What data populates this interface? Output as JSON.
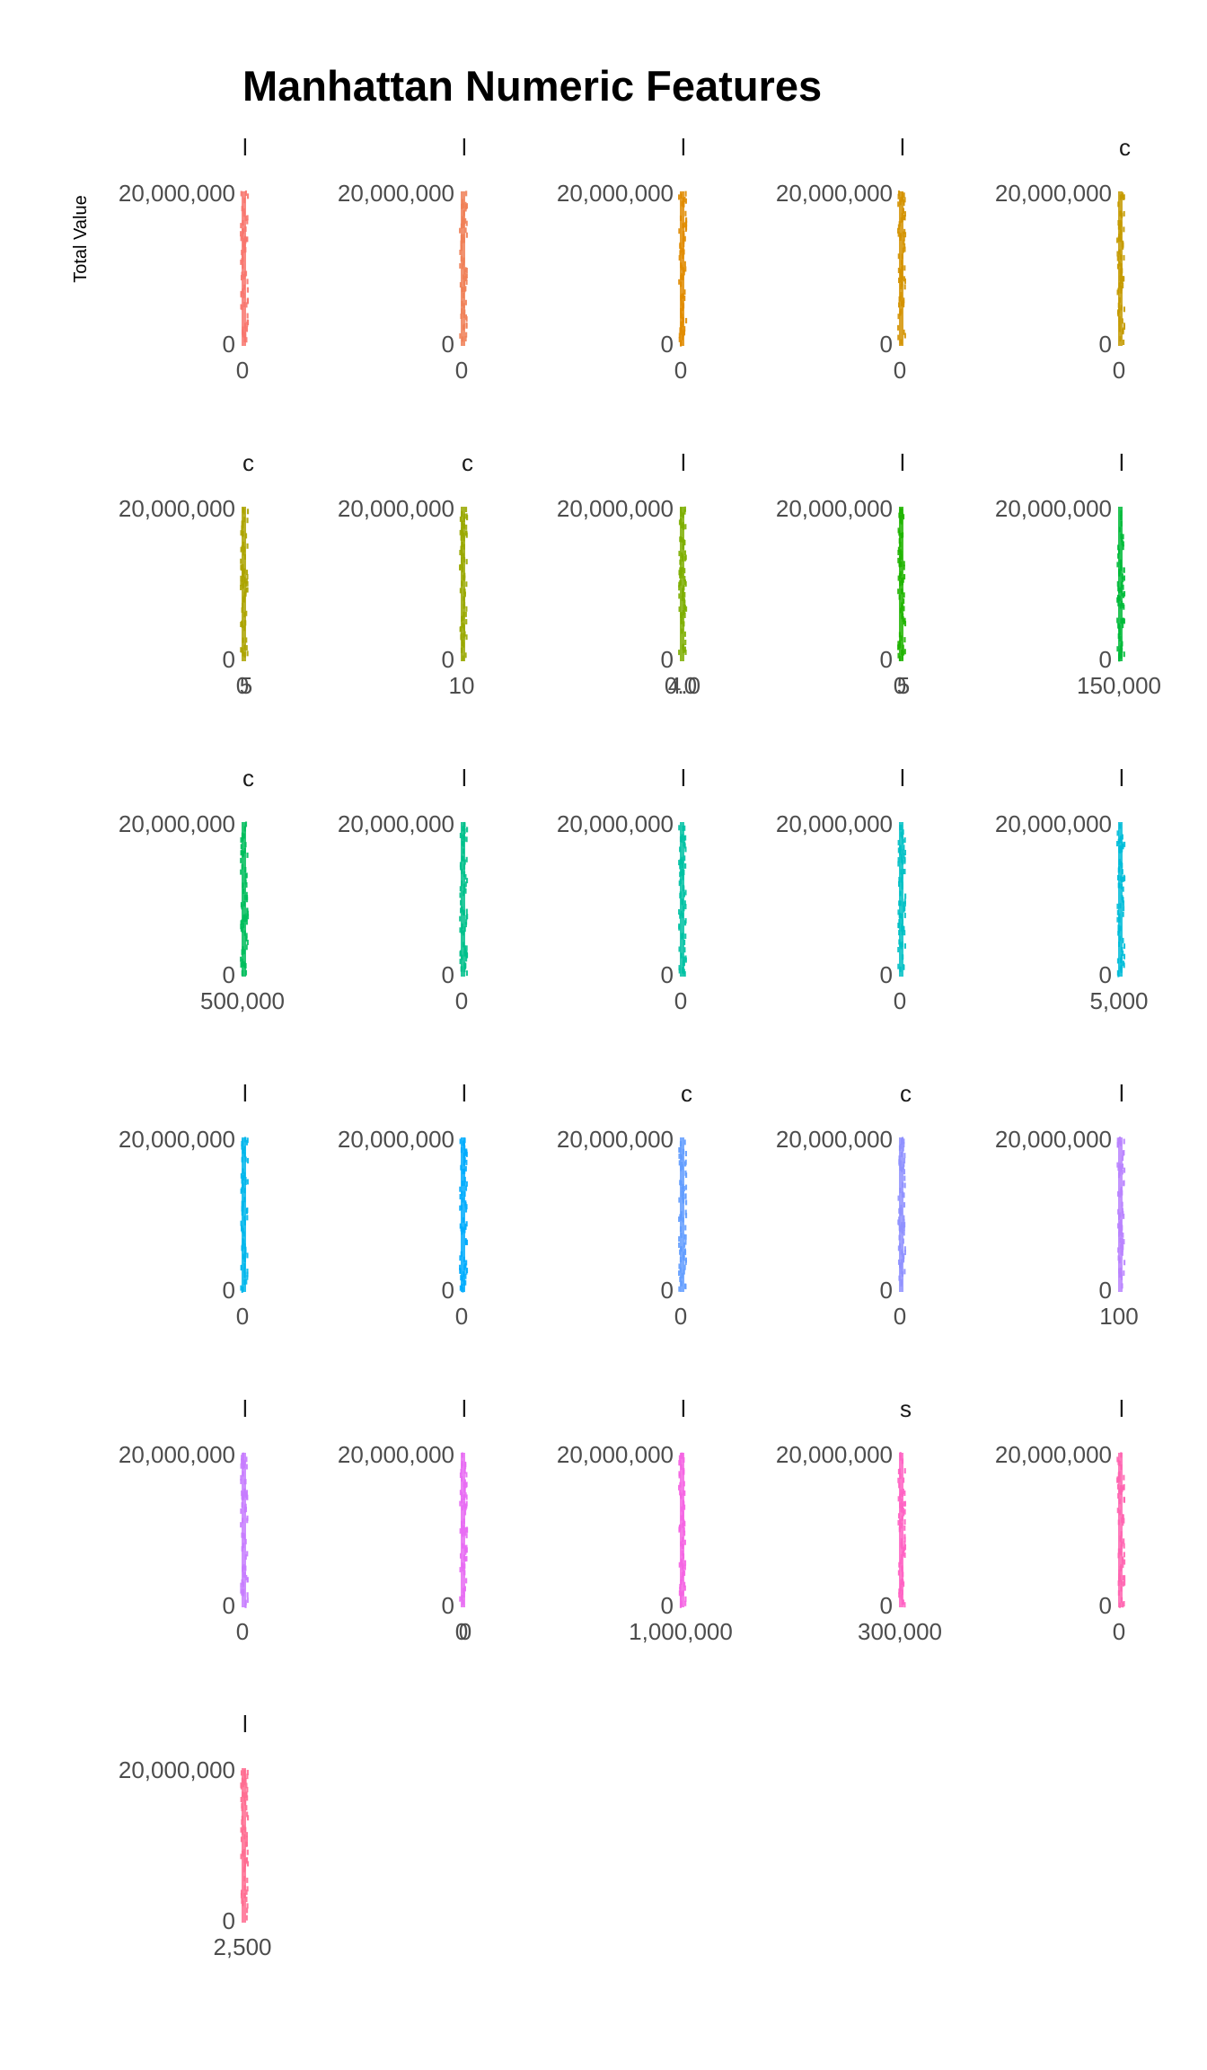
{
  "chart_data": {
    "type": "scatter",
    "title": "Manhattan Numeric Features",
    "ylabel": "Total Value",
    "ylim": [
      0,
      21000000
    ],
    "y_ticks": [
      0,
      20000000
    ],
    "y_tick_labels": [
      "0",
      "20,000,000"
    ],
    "grid": false,
    "legend": "none",
    "facets": [
      {
        "strip": "l",
        "color": "#F8766D",
        "x_tick_labels": [
          "0"
        ]
      },
      {
        "strip": "l",
        "color": "#F07F56",
        "x_tick_labels": [
          "0"
        ]
      },
      {
        "strip": "l",
        "color": "#E08B00",
        "x_tick_labels": [
          "0"
        ]
      },
      {
        "strip": "l",
        "color": "#D39200",
        "x_tick_labels": [
          "0"
        ]
      },
      {
        "strip": "c",
        "color": "#C49A00",
        "x_tick_labels": [
          "0"
        ]
      },
      {
        "strip": "c",
        "color": "#ABA300",
        "x_tick_labels": [
          "0",
          "5"
        ]
      },
      {
        "strip": "c",
        "color": "#99A800",
        "x_tick_labels": [
          "10"
        ]
      },
      {
        "strip": "l",
        "color": "#7CAE00",
        "x_tick_labels": [
          "0.0",
          "4.0"
        ]
      },
      {
        "strip": "l",
        "color": "#1FB400",
        "x_tick_labels": [
          "0",
          "5"
        ]
      },
      {
        "strip": "l",
        "color": "#00BA38",
        "x_tick_labels": [
          "150,000"
        ]
      },
      {
        "strip": "c",
        "color": "#00BD5C",
        "x_tick_labels": [
          "500,000"
        ]
      },
      {
        "strip": "l",
        "color": "#00C08B",
        "x_tick_labels": [
          "0"
        ]
      },
      {
        "strip": "l",
        "color": "#00C1A3",
        "x_tick_labels": [
          "0"
        ]
      },
      {
        "strip": "l",
        "color": "#00BFC4",
        "x_tick_labels": [
          "0"
        ]
      },
      {
        "strip": "l",
        "color": "#00BCD8",
        "x_tick_labels": [
          "5,000"
        ]
      },
      {
        "strip": "l",
        "color": "#00B6EB",
        "x_tick_labels": [
          "0"
        ]
      },
      {
        "strip": "l",
        "color": "#00ABFD",
        "x_tick_labels": [
          "0"
        ]
      },
      {
        "strip": "c",
        "color": "#619CFF",
        "x_tick_labels": [
          "0"
        ]
      },
      {
        "strip": "c",
        "color": "#8F91FF",
        "x_tick_labels": [
          "0"
        ]
      },
      {
        "strip": "l",
        "color": "#B983FF",
        "x_tick_labels": [
          "100"
        ]
      },
      {
        "strip": "l",
        "color": "#C77CFF",
        "x_tick_labels": [
          "0"
        ]
      },
      {
        "strip": "l",
        "color": "#E76BF3",
        "x_tick_labels": [
          "0",
          "0"
        ]
      },
      {
        "strip": "l",
        "color": "#F564E3",
        "x_tick_labels": [
          "1,000,000"
        ]
      },
      {
        "strip": "s",
        "color": "#FF61C3",
        "x_tick_labels": [
          "300,000"
        ]
      },
      {
        "strip": "l",
        "color": "#FF64B0",
        "x_tick_labels": [
          "0"
        ]
      },
      {
        "strip": "l",
        "color": "#FF6C91",
        "x_tick_labels": [
          "2,500"
        ]
      }
    ]
  }
}
